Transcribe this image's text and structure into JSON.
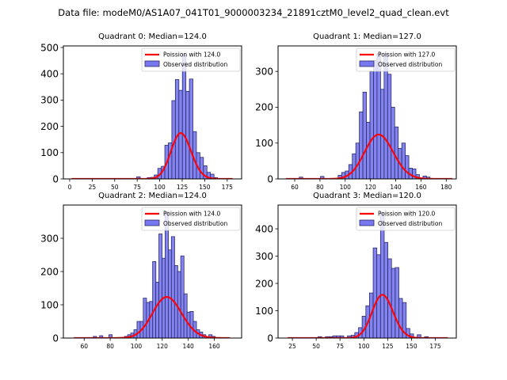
{
  "chart_data": {
    "suptitle": "Data file: modeM0/AS1A07_041T01_9000003234_21891cztM0_level2_quad_clean.evt",
    "colors": {
      "bar_fill": "#7777f0",
      "bar_edge": "#2a2a6a",
      "fit_line": "#ff0000"
    },
    "panels": [
      {
        "type": "bar",
        "title": "Quadrant 0: Median=124.0",
        "xlim": [
          -7,
          191
        ],
        "ylim": [
          0,
          506
        ],
        "xticks": [
          0,
          25,
          50,
          75,
          100,
          125,
          150,
          175
        ],
        "yticks": [
          0,
          100,
          200,
          300,
          400,
          500
        ],
        "legend": [
          "Poission with 124.0",
          "Observed distribution"
        ],
        "legend_position": "top-right",
        "bin_width": 3.9,
        "bins": [
          {
            "x": 74.5,
            "y": 8
          },
          {
            "x": 86.2,
            "y": 5
          },
          {
            "x": 90.1,
            "y": 6
          },
          {
            "x": 94.0,
            "y": 15
          },
          {
            "x": 97.9,
            "y": 40
          },
          {
            "x": 101.8,
            "y": 48
          },
          {
            "x": 105.7,
            "y": 128
          },
          {
            "x": 109.6,
            "y": 137
          },
          {
            "x": 113.5,
            "y": 298
          },
          {
            "x": 117.4,
            "y": 378
          },
          {
            "x": 121.3,
            "y": 337
          },
          {
            "x": 125.2,
            "y": 472
          },
          {
            "x": 129.1,
            "y": 333
          },
          {
            "x": 133.0,
            "y": 380
          },
          {
            "x": 136.9,
            "y": 180
          },
          {
            "x": 140.8,
            "y": 100
          },
          {
            "x": 144.7,
            "y": 82
          },
          {
            "x": 148.6,
            "y": 50
          },
          {
            "x": 152.5,
            "y": 25
          },
          {
            "x": 156.4,
            "y": 18
          },
          {
            "x": 160.3,
            "y": 5
          }
        ],
        "poisson_mean": 124.0,
        "poisson_scale": 4870,
        "fit_x_range": [
          2,
          181
        ]
      },
      {
        "type": "bar",
        "title": "Quadrant 1: Median=127.0",
        "xlim": [
          46.8,
          188
        ],
        "ylim": [
          0,
          371
        ],
        "xticks": [
          60,
          80,
          100,
          120,
          140,
          160,
          180
        ],
        "yticks": [
          0,
          100,
          200,
          300
        ],
        "legend": [
          "Poission with 127.0",
          "Observed distribution"
        ],
        "legend_position": "top-right",
        "bin_width": 2.8,
        "bins": [
          {
            "x": 63.6,
            "y": 5
          },
          {
            "x": 80.4,
            "y": 7
          },
          {
            "x": 94.4,
            "y": 10
          },
          {
            "x": 97.2,
            "y": 18
          },
          {
            "x": 100.0,
            "y": 22
          },
          {
            "x": 102.8,
            "y": 40
          },
          {
            "x": 105.6,
            "y": 70
          },
          {
            "x": 108.4,
            "y": 100
          },
          {
            "x": 111.2,
            "y": 187
          },
          {
            "x": 114.0,
            "y": 242
          },
          {
            "x": 116.8,
            "y": 158
          },
          {
            "x": 119.6,
            "y": 300
          },
          {
            "x": 122.4,
            "y": 330
          },
          {
            "x": 125.2,
            "y": 350
          },
          {
            "x": 128.0,
            "y": 250
          },
          {
            "x": 130.8,
            "y": 350
          },
          {
            "x": 133.6,
            "y": 292
          },
          {
            "x": 136.4,
            "y": 200
          },
          {
            "x": 139.2,
            "y": 145
          },
          {
            "x": 142.0,
            "y": 85
          },
          {
            "x": 144.8,
            "y": 100
          },
          {
            "x": 147.6,
            "y": 65
          },
          {
            "x": 150.4,
            "y": 30
          },
          {
            "x": 153.2,
            "y": 28
          },
          {
            "x": 156.0,
            "y": 12
          },
          {
            "x": 161.6,
            "y": 8
          },
          {
            "x": 164.4,
            "y": 5
          }
        ],
        "poisson_mean": 127.0,
        "poisson_scale": 3500,
        "fit_x_range": [
          53,
          185
        ]
      },
      {
        "type": "bar",
        "title": "Quadrant 2: Median=124.0",
        "xlim": [
          44,
          181
        ],
        "ylim": [
          0,
          400
        ],
        "xticks": [
          60,
          80,
          100,
          120,
          140,
          160
        ],
        "yticks": [
          0,
          100,
          200,
          300
        ],
        "legend": [
          "Poission with 124.0",
          "Observed distribution"
        ],
        "legend_position": "top-right",
        "bin_width": 2.5,
        "bins": [
          {
            "x": 67.0,
            "y": 5
          },
          {
            "x": 71.8,
            "y": 7
          },
          {
            "x": 79.0,
            "y": 10
          },
          {
            "x": 91.0,
            "y": 5
          },
          {
            "x": 93.4,
            "y": 10
          },
          {
            "x": 95.8,
            "y": 15
          },
          {
            "x": 98.2,
            "y": 25
          },
          {
            "x": 100.6,
            "y": 50
          },
          {
            "x": 103.0,
            "y": 50
          },
          {
            "x": 105.4,
            "y": 120
          },
          {
            "x": 107.8,
            "y": 107
          },
          {
            "x": 110.2,
            "y": 110
          },
          {
            "x": 112.6,
            "y": 230
          },
          {
            "x": 115.0,
            "y": 168
          },
          {
            "x": 117.4,
            "y": 313
          },
          {
            "x": 119.8,
            "y": 240
          },
          {
            "x": 122.2,
            "y": 380
          },
          {
            "x": 124.6,
            "y": 265
          },
          {
            "x": 127.0,
            "y": 305
          },
          {
            "x": 129.4,
            "y": 218
          },
          {
            "x": 131.8,
            "y": 200
          },
          {
            "x": 134.2,
            "y": 247
          },
          {
            "x": 136.6,
            "y": 133
          },
          {
            "x": 139.0,
            "y": 78
          },
          {
            "x": 141.4,
            "y": 80
          },
          {
            "x": 143.8,
            "y": 50
          },
          {
            "x": 146.2,
            "y": 25
          },
          {
            "x": 148.6,
            "y": 18
          },
          {
            "x": 151.0,
            "y": 10
          },
          {
            "x": 155.8,
            "y": 10
          },
          {
            "x": 158.2,
            "y": 5
          }
        ],
        "poisson_mean": 124.0,
        "poisson_scale": 3450,
        "fit_x_range": [
          52,
          172
        ]
      },
      {
        "type": "bar",
        "title": "Quadrant 3: Median=120.0",
        "xlim": [
          10,
          197
        ],
        "ylim": [
          0,
          487
        ],
        "xticks": [
          25,
          50,
          75,
          100,
          125,
          150,
          175
        ],
        "yticks": [
          0,
          100,
          200,
          300,
          400
        ],
        "legend": [
          "Poission with 120.0",
          "Observed distribution"
        ],
        "legend_position": "top-right",
        "bin_width": 3.85,
        "bins": [
          {
            "x": 52.0,
            "y": 5
          },
          {
            "x": 59.7,
            "y": 5
          },
          {
            "x": 63.6,
            "y": 5
          },
          {
            "x": 67.4,
            "y": 8
          },
          {
            "x": 71.3,
            "y": 8
          },
          {
            "x": 75.1,
            "y": 8
          },
          {
            "x": 82.8,
            "y": 8
          },
          {
            "x": 86.7,
            "y": 10
          },
          {
            "x": 90.5,
            "y": 20
          },
          {
            "x": 94.4,
            "y": 38
          },
          {
            "x": 98.2,
            "y": 80
          },
          {
            "x": 102.1,
            "y": 118
          },
          {
            "x": 105.9,
            "y": 165
          },
          {
            "x": 109.8,
            "y": 330
          },
          {
            "x": 113.6,
            "y": 305
          },
          {
            "x": 117.5,
            "y": 460
          },
          {
            "x": 121.3,
            "y": 350
          },
          {
            "x": 125.2,
            "y": 290
          },
          {
            "x": 129.0,
            "y": 255
          },
          {
            "x": 132.9,
            "y": 258
          },
          {
            "x": 136.7,
            "y": 145
          },
          {
            "x": 140.6,
            "y": 130
          },
          {
            "x": 144.4,
            "y": 35
          },
          {
            "x": 148.3,
            "y": 15
          },
          {
            "x": 156.0,
            "y": 12
          },
          {
            "x": 163.7,
            "y": 5
          }
        ],
        "poisson_mean": 120.0,
        "poisson_scale": 4350,
        "fit_x_range": [
          20,
          188
        ]
      }
    ]
  }
}
